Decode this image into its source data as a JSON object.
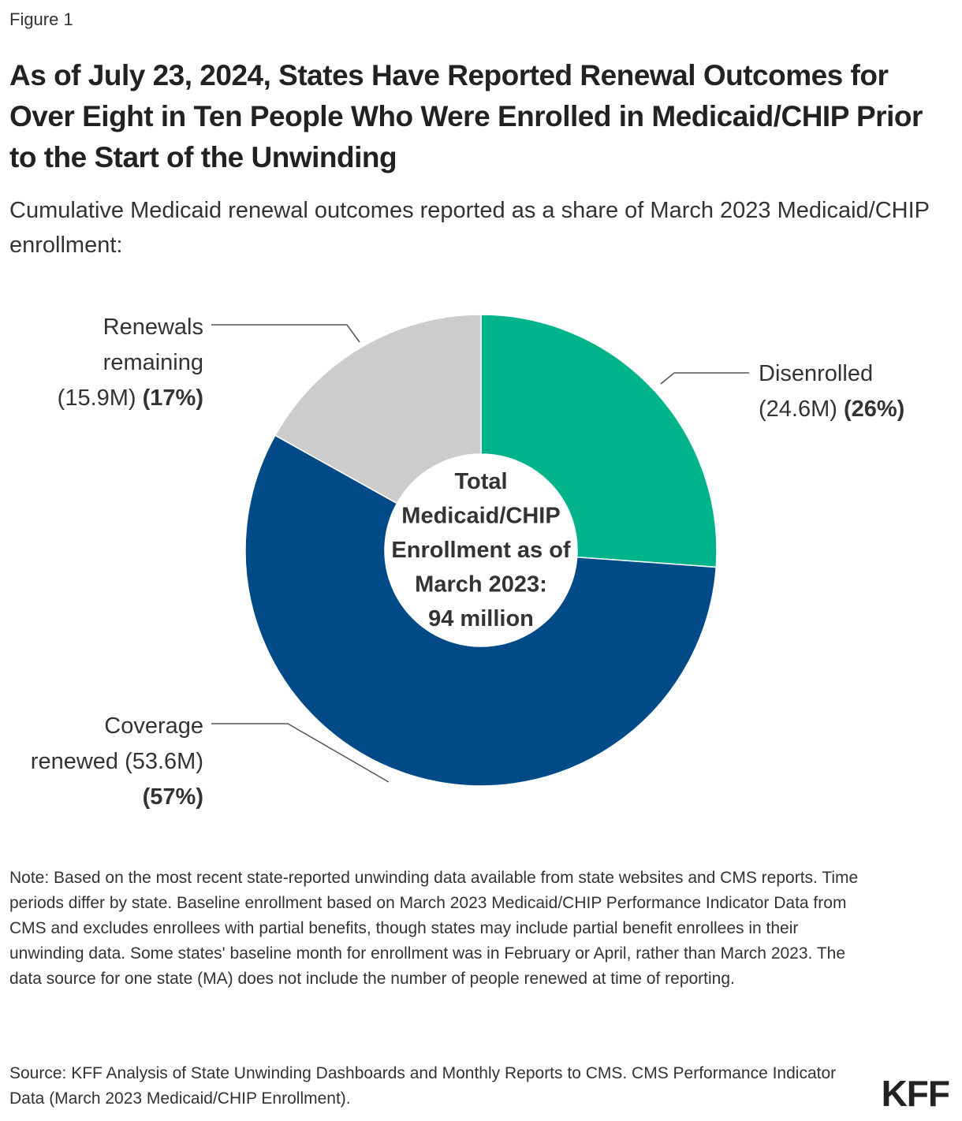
{
  "figure_label": "Figure 1",
  "title": "As of July 23, 2024, States Have Reported Renewal Outcomes for Over Eight in Ten People Who Were Enrolled in Medicaid/CHIP Prior to the Start of the Unwinding",
  "subtitle": "Cumulative Medicaid renewal outcomes reported as a share of March 2023 Medicaid/CHIP enrollment:",
  "note": "Note: Based on the most recent state-reported unwinding data available from state websites and CMS reports. Time periods differ by state. Baseline enrollment based on March 2023 Medicaid/CHIP Performance Indicator Data from CMS and excludes enrollees with partial benefits, though states may include partial benefit enrollees in their unwinding data. Some states' baseline month for enrollment was in February or April, rather than March 2023. The data source for one state (MA) does not include the number of people renewed at time of reporting.",
  "source": "Source: KFF Analysis of State Unwinding Dashboards and Monthly Reports to CMS. CMS Performance Indicator Data (March 2023 Medicaid/CHIP Enrollment).",
  "logo_text": "KFF",
  "chart_data": {
    "type": "pie",
    "donut": true,
    "center_label": [
      "Total",
      "Medicaid/CHIP",
      "Enrollment as of",
      "March 2023:",
      "94 million"
    ],
    "slices": [
      {
        "name": "Disenrolled",
        "value": 24.6,
        "percent": 26,
        "color": "#00b38a",
        "label_lines": [
          [
            {
              "text": "Disenrolled",
              "bold": false
            }
          ],
          [
            {
              "text": "(24.6M) ",
              "bold": false
            },
            {
              "text": "(26%)",
              "bold": true
            }
          ]
        ]
      },
      {
        "name": "Coverage renewed",
        "value": 53.6,
        "percent": 57,
        "color": "#004a87",
        "label_lines": [
          [
            {
              "text": "Coverage",
              "bold": false
            }
          ],
          [
            {
              "text": "renewed (53.6M)",
              "bold": false
            }
          ],
          [
            {
              "text": "(57%)",
              "bold": true
            }
          ]
        ]
      },
      {
        "name": "Renewals remaining",
        "value": 15.9,
        "percent": 17,
        "color": "#cccccc",
        "label_lines": [
          [
            {
              "text": "Renewals",
              "bold": false
            }
          ],
          [
            {
              "text": "remaining",
              "bold": false
            }
          ],
          [
            {
              "text": "(15.9M) ",
              "bold": false
            },
            {
              "text": "(17%)",
              "bold": true
            }
          ]
        ]
      }
    ]
  }
}
